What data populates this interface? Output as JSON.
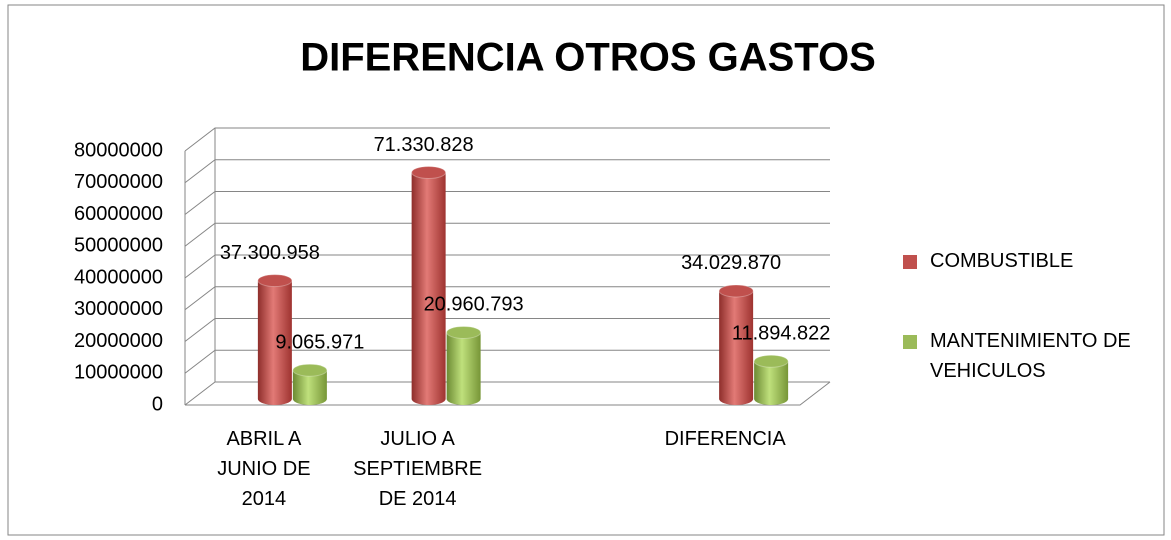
{
  "chart_data": {
    "type": "bar3d",
    "title": "DIFERENCIA OTROS GASTOS",
    "categories": [
      "ABRIL A JUNIO DE 2014",
      "JULIO A SEPTIEMBRE DE 2014",
      null,
      "DIFERENCIA"
    ],
    "series": [
      {
        "name": "COMBUSTIBLE",
        "color": "#c0504d",
        "values": [
          37300958,
          71330828,
          null,
          34029870
        ],
        "value_labels": [
          "37.300.958",
          "71.330.828",
          null,
          "34.029.870"
        ]
      },
      {
        "name": "MANTENIMIENTO DE VEHICULOS",
        "color": "#9bbb59",
        "values": [
          9065971,
          20960793,
          null,
          11894822
        ],
        "value_labels": [
          "9.065.971",
          "20.960.793",
          null,
          "11.894.822"
        ]
      }
    ],
    "ylim": [
      0,
      80000000
    ],
    "yticks": [
      0,
      10000000,
      20000000,
      30000000,
      40000000,
      50000000,
      60000000,
      70000000,
      80000000
    ],
    "grid": true,
    "legend": "right"
  }
}
